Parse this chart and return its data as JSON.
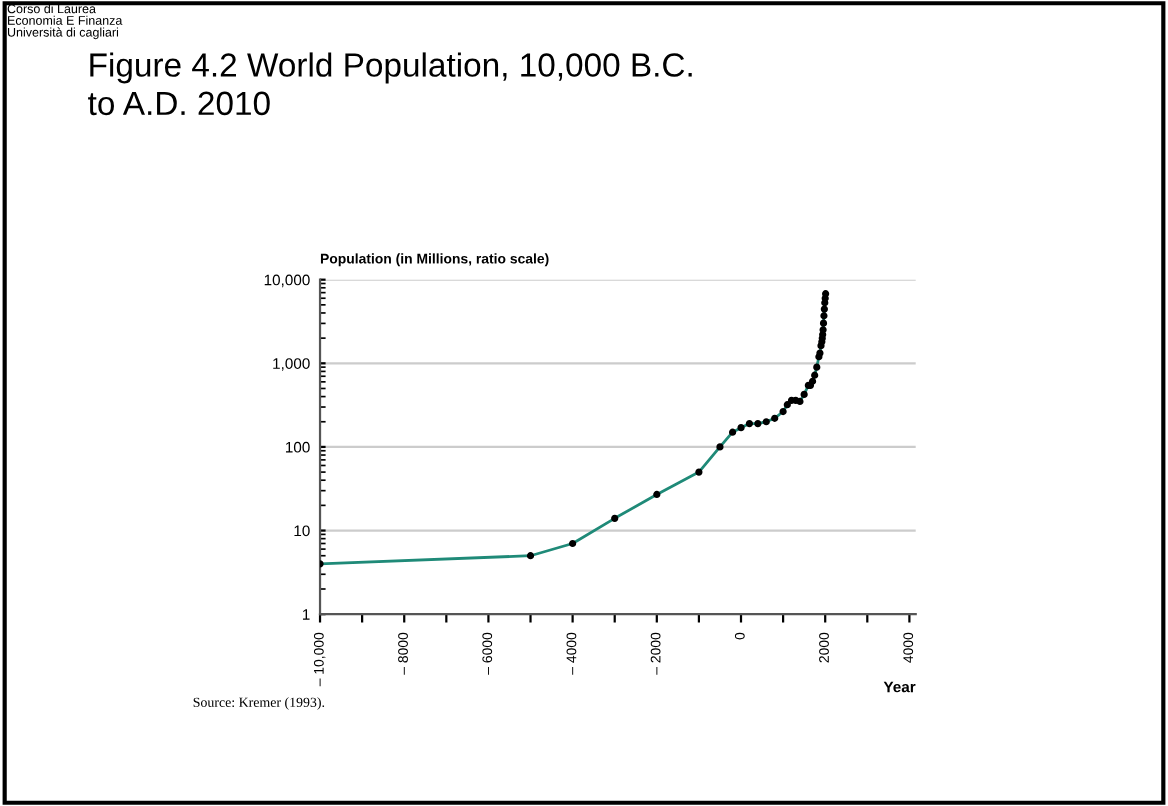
{
  "chart_data": {
    "type": "line",
    "title": "Figure 4.2 World Population, 10,000 B.C.\nto A.D. 2010",
    "ylabel": "Population (in Millions, ratio scale)",
    "xlabel": "Year",
    "annotations": [
      "Corso di Laurea\nEconomia E Finanza\nUniversità di cagliari",
      "Source: Kremer (1993)."
    ],
    "x": [
      -10000,
      -5000,
      -4000,
      -3000,
      -2000,
      -1000,
      -500,
      -200,
      1,
      200,
      400,
      600,
      800,
      1000,
      1100,
      1200,
      1300,
      1400,
      1500,
      1600,
      1650,
      1700,
      1750,
      1800,
      1850,
      1875,
      1900,
      1920,
      1930,
      1940,
      1950,
      1960,
      1970,
      1980,
      1990,
      2000,
      2010
    ],
    "series": [
      {
        "color": "#1f8a78",
        "values": [
          4,
          5,
          7,
          14,
          27,
          50,
          100,
          150,
          170,
          190,
          190,
          200,
          220,
          265,
          320,
          360,
          360,
          350,
          425,
          545,
          545,
          610,
          720,
          900,
          1200,
          1325,
          1625,
          1813,
          1987,
          2213,
          2516,
          3020,
          3698,
          4448,
          5292,
          6000,
          6800
        ]
      }
    ],
    "log": "y",
    "xlim": [
      -10000,
      4150
    ],
    "xticks": [
      {
        "value": -10000,
        "label": "– 10,000"
      },
      {
        "value": -9000,
        "label": null
      },
      {
        "value": -8000,
        "label": "– 8000"
      },
      {
        "value": -7000,
        "label": null
      },
      {
        "value": -6000,
        "label": "– 6000"
      },
      {
        "value": -5000,
        "label": null
      },
      {
        "value": -4000,
        "label": "– 4000"
      },
      {
        "value": -3000,
        "label": null
      },
      {
        "value": -2000,
        "label": "– 2000"
      },
      {
        "value": -1000,
        "label": null
      },
      {
        "value": 0,
        "label": "0"
      },
      {
        "value": 1000,
        "label": null
      },
      {
        "value": 2000,
        "label": "2000"
      },
      {
        "value": 3000,
        "label": null
      },
      {
        "value": 4000,
        "label": "4000"
      }
    ],
    "ylim": [
      1,
      10000
    ],
    "yticks": [
      1,
      {
        "value": 10,
        "label": "10"
      },
      {
        "value": 100,
        "label": "100"
      },
      {
        "value": 1000,
        "label": "1,000"
      },
      {
        "value": 10000,
        "label": "10,000"
      }
    ],
    "grid": "y",
    "marker": "circle",
    "line_style": "solid"
  }
}
